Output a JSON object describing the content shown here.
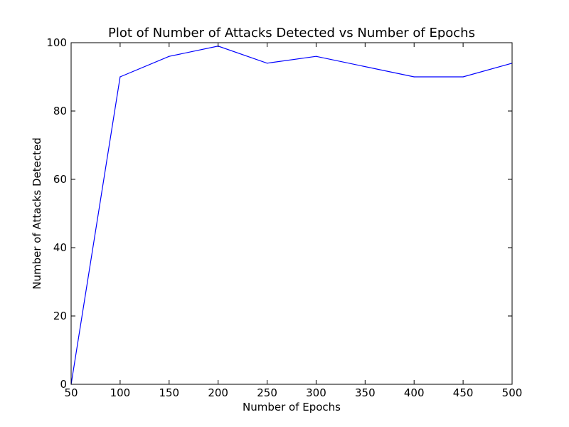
{
  "chart_data": {
    "type": "line",
    "title": "Plot of Number of Attacks Detected vs Number of Epochs",
    "xlabel": "Number of Epochs",
    "ylabel": "Number of Attacks Detected",
    "xlim": [
      50,
      500
    ],
    "ylim": [
      0,
      100
    ],
    "xticks": [
      50,
      100,
      150,
      200,
      250,
      300,
      350,
      400,
      450,
      500
    ],
    "yticks": [
      0,
      20,
      40,
      60,
      80,
      100
    ],
    "grid": false,
    "series": [
      {
        "color": "#0000ff",
        "x": [
          50,
          100,
          150,
          200,
          250,
          300,
          400,
          450,
          500
        ],
        "y": [
          0,
          90,
          96,
          99,
          94,
          96,
          90,
          90,
          94
        ]
      }
    ]
  }
}
